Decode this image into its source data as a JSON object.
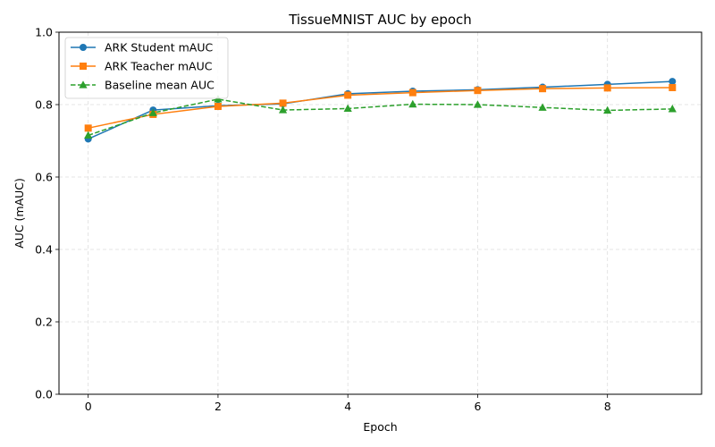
{
  "chart_data": {
    "type": "line",
    "title": "TissueMNIST AUC by epoch",
    "xlabel": "Epoch",
    "ylabel": "AUC (mAUC)",
    "x": [
      0,
      1,
      2,
      3,
      4,
      5,
      6,
      7,
      8,
      9
    ],
    "xlim": [
      -0.45,
      9.45
    ],
    "ylim": [
      0.0,
      1.0
    ],
    "xticks": [
      0,
      2,
      4,
      6,
      8
    ],
    "yticks": [
      0.0,
      0.2,
      0.4,
      0.6,
      0.8,
      1.0
    ],
    "xtick_labels": [
      "0",
      "2",
      "4",
      "6",
      "8"
    ],
    "ytick_labels": [
      "0.0",
      "0.2",
      "0.4",
      "0.6",
      "0.8",
      "1.0"
    ],
    "grid": true,
    "legend_position": "top-left",
    "series": [
      {
        "name": "ARK Student mAUC",
        "color": "#1f77b4",
        "marker": "circle",
        "linestyle": "solid",
        "values": [
          0.705,
          0.785,
          0.797,
          0.802,
          0.83,
          0.837,
          0.841,
          0.848,
          0.856,
          0.864
        ]
      },
      {
        "name": "ARK Teacher mAUC",
        "color": "#ff7f0e",
        "marker": "square",
        "linestyle": "solid",
        "values": [
          0.735,
          0.773,
          0.795,
          0.804,
          0.826,
          0.833,
          0.839,
          0.844,
          0.846,
          0.847
        ]
      },
      {
        "name": "Baseline mean AUC",
        "color": "#2ca02c",
        "marker": "triangle",
        "linestyle": "dashed",
        "values": [
          0.715,
          0.777,
          0.815,
          0.785,
          0.789,
          0.801,
          0.8,
          0.792,
          0.784,
          0.788
        ]
      }
    ]
  }
}
